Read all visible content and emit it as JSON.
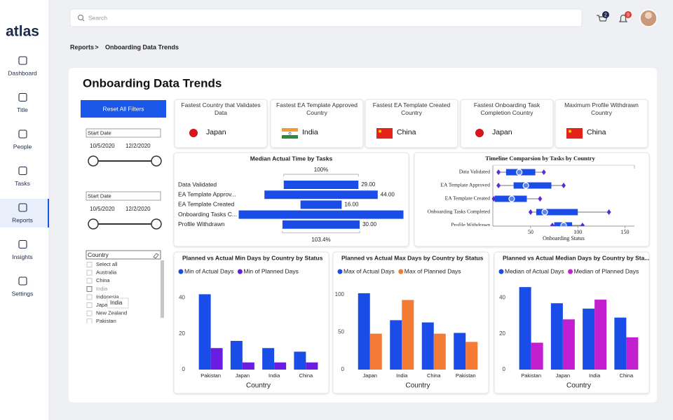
{
  "sidebar": {
    "logo": "atlas",
    "nav": [
      "Dashboard",
      "Title",
      "People",
      "Tasks",
      "Reports",
      "Insights",
      "Settings"
    ],
    "active_index": 4
  },
  "header": {
    "search_placeholder": "Search",
    "cart_count": 2,
    "notification_count": 9
  },
  "breadcrumb": {
    "items": [
      "Reports",
      "Onboarding Data Trends"
    ],
    "separator": ">"
  },
  "title": "Onboarding Data Trends",
  "filters": {
    "reset_button": "Reset All Filters",
    "date_ranges": [
      {
        "label": "Start Date",
        "start": "10/5/2020",
        "end": "12/2/2020"
      },
      {
        "label": "Start Date",
        "start": "10/5/2020",
        "end": "12/2/2020"
      }
    ],
    "country": {
      "title": "Country",
      "options": [
        "Select all",
        "Australia",
        "China",
        "India",
        "Indonesia",
        "Japan",
        "New Zealand",
        "Pakistan"
      ],
      "tooltip": "India"
    }
  },
  "kpis": [
    {
      "title": "Fastest Country that Validates Data",
      "value": "Japan"
    },
    {
      "title": "Fastest EA Template Approved Country",
      "value": "India"
    },
    {
      "title": "Fastest EA Template Created Country",
      "value": "China"
    },
    {
      "title": "Fastest Onboarding Task Completion Country",
      "value": "Japan"
    },
    {
      "title": "Maximum Profile Withdrawn Country",
      "value": "China"
    }
  ],
  "chart_data": [
    {
      "type": "funnel",
      "title": "Median Actual Time by Tasks",
      "categories": [
        "Data Validated",
        "EA Template Approv...",
        "EA Template Created",
        "Onboarding Tasks C...",
        "Profile Withdrawn"
      ],
      "values": [
        29,
        44,
        16,
        64,
        30
      ],
      "value_labels": [
        "29.00",
        "44.00",
        "16.00",
        null,
        "30.00"
      ],
      "color": "#1a4de8",
      "top_label": "100%",
      "bottom_label": "103.4%"
    },
    {
      "type": "box",
      "title": "Timeline Comparsion by Tasks by Country",
      "categories": [
        "Data Validated",
        "EA Template Approved",
        "EA Template Created",
        "Onboarding Tasks Completed",
        "Profile Withdrawn"
      ],
      "boxes": [
        {
          "min": 16,
          "q1": 24,
          "median": 38,
          "q3": 55,
          "max": 64
        },
        {
          "min": 16,
          "q1": 32,
          "median": 45,
          "q3": 72,
          "max": 85
        },
        {
          "min": 11,
          "q1": 12,
          "median": 30,
          "q3": 46,
          "max": 60
        },
        {
          "min": 50,
          "q1": 56,
          "median": 65,
          "q3": 100,
          "max": 133
        },
        {
          "min": 73,
          "q1": 75,
          "median": 85,
          "q3": 94,
          "max": 105
        }
      ],
      "color": "#1a4de8",
      "whisker_color": "#5b2ccf",
      "xlim": [
        10,
        160
      ],
      "xticks": [
        50,
        100,
        150
      ],
      "xlabel": "Onboarding Status"
    },
    {
      "type": "grouped_bar",
      "title": "Planned vs Actual Min Days by Country by Status",
      "categories": [
        "Pakistan",
        "Japan",
        "India",
        "China"
      ],
      "series": [
        {
          "name": "Min of Actual Days",
          "color": "#1a4de8",
          "values": [
            42,
            16,
            12,
            10
          ]
        },
        {
          "name": "Min of Planned Days",
          "color": "#6a1de0",
          "values": [
            12,
            4,
            4,
            4
          ]
        }
      ],
      "ylim": [
        0,
        48
      ],
      "yticks": [
        0,
        20,
        40
      ],
      "xlabel": "Country",
      "legend": "top-left"
    },
    {
      "type": "grouped_bar",
      "title": "Planned vs Actual Max Days by Country by Status",
      "categories": [
        "Japan",
        "India",
        "China",
        "Pakistan"
      ],
      "series": [
        {
          "name": "Max of Actual Days",
          "color": "#1a4de8",
          "values": [
            102,
            66,
            63,
            49
          ]
        },
        {
          "name": "Max of Planned Days",
          "color": "#f47b35",
          "values": [
            48,
            93,
            48,
            37
          ]
        }
      ],
      "ylim": [
        0,
        115
      ],
      "yticks": [
        0,
        50,
        100
      ],
      "xlabel": "Country",
      "legend": "top-left"
    },
    {
      "type": "grouped_bar",
      "title": "Planned vs Actual Median Days by Country by Sta...",
      "categories": [
        "Pakistan",
        "Japan",
        "India",
        "China"
      ],
      "series": [
        {
          "name": "Median of Actual Days",
          "color": "#1a4de8",
          "values": [
            46,
            37,
            34,
            29
          ]
        },
        {
          "name": "Median of Planned Days",
          "color": "#c21fd0",
          "values": [
            15,
            28,
            39,
            18
          ]
        }
      ],
      "ylim": [
        0,
        48
      ],
      "yticks": [
        0,
        20,
        40
      ],
      "xlabel": "Country",
      "legend": "top-left"
    }
  ]
}
